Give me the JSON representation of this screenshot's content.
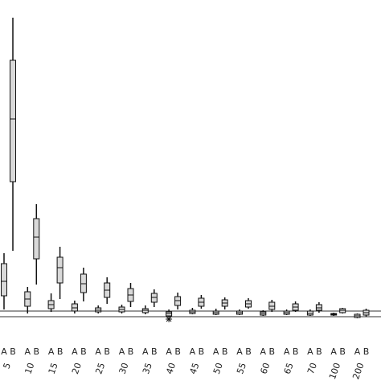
{
  "chart_data": {
    "type": "box",
    "categories": [
      "5",
      "10",
      "15",
      "20",
      "25",
      "30",
      "35",
      "40",
      "45",
      "50",
      "55",
      "60",
      "65",
      "70",
      "100",
      "200"
    ],
    "ylim": [
      -20,
      374
    ],
    "reference_lines": [
      7,
      0
    ],
    "box_color": "#d9d9d9",
    "series": [
      {
        "name": "A",
        "values": [
          {
            "low": 9,
            "q1": 26,
            "median": 44,
            "q3": 66,
            "high": 79
          },
          {
            "low": 4,
            "q1": 13,
            "median": 22,
            "q3": 31,
            "high": 37
          },
          {
            "low": 6,
            "q1": 10,
            "median": 15,
            "q3": 20,
            "high": 29
          },
          {
            "low": 4,
            "q1": 7,
            "median": 11,
            "q3": 16,
            "high": 20
          },
          {
            "low": 4,
            "q1": 6,
            "median": 8,
            "q3": 11,
            "high": 14
          },
          {
            "low": 4,
            "q1": 6,
            "median": 9,
            "q3": 12,
            "high": 15
          },
          {
            "low": 3,
            "q1": 5,
            "median": 8,
            "q3": 10,
            "high": 14
          },
          {
            "low": 0,
            "q1": 1,
            "median": 4,
            "q3": 6,
            "high": 9
          },
          {
            "low": 3,
            "q1": 4,
            "median": 6,
            "q3": 8,
            "high": 11
          },
          {
            "low": 2,
            "q1": 3,
            "median": 5,
            "q3": 7,
            "high": 10
          },
          {
            "low": 2,
            "q1": 3,
            "median": 5,
            "q3": 7,
            "high": 9
          },
          {
            "low": 1,
            "q1": 2,
            "median": 4,
            "q3": 6,
            "high": 8
          },
          {
            "low": 2,
            "q1": 3,
            "median": 5,
            "q3": 7,
            "high": 9
          },
          {
            "low": 1,
            "q1": 2,
            "median": 4,
            "q3": 7,
            "high": 9
          },
          {
            "low": 1,
            "q1": 2,
            "median": 3,
            "q3": 4,
            "high": 5
          },
          {
            "low": -2,
            "q1": -1,
            "median": 1,
            "q3": 3,
            "high": 4
          }
        ],
        "outliers": [
          [],
          [],
          [],
          [],
          [],
          [],
          [],
          [
            -3
          ],
          [],
          [],
          [],
          [],
          [],
          [],
          [],
          []
        ]
      },
      {
        "name": "B",
        "values": [
          {
            "low": 82,
            "q1": 168,
            "median": 246,
            "q3": 319,
            "high": 372
          },
          {
            "low": 40,
            "q1": 72,
            "median": 99,
            "q3": 122,
            "high": 140
          },
          {
            "low": 22,
            "q1": 42,
            "median": 61,
            "q3": 74,
            "high": 87
          },
          {
            "low": 19,
            "q1": 30,
            "median": 41,
            "q3": 53,
            "high": 61
          },
          {
            "low": 16,
            "q1": 24,
            "median": 33,
            "q3": 42,
            "high": 49
          },
          {
            "low": 12,
            "q1": 19,
            "median": 27,
            "q3": 35,
            "high": 42
          },
          {
            "low": 12,
            "q1": 18,
            "median": 24,
            "q3": 29,
            "high": 34
          },
          {
            "low": 9,
            "q1": 14,
            "median": 20,
            "q3": 25,
            "high": 30
          },
          {
            "low": 10,
            "q1": 13,
            "median": 18,
            "q3": 23,
            "high": 27
          },
          {
            "low": 9,
            "q1": 13,
            "median": 17,
            "q3": 21,
            "high": 24
          },
          {
            "low": 10,
            "q1": 12,
            "median": 16,
            "q3": 20,
            "high": 23
          },
          {
            "low": 6,
            "q1": 9,
            "median": 13,
            "q3": 18,
            "high": 21
          },
          {
            "low": 6,
            "q1": 8,
            "median": 12,
            "q3": 16,
            "high": 19
          },
          {
            "low": 5,
            "q1": 8,
            "median": 11,
            "q3": 15,
            "high": 18
          },
          {
            "low": 4,
            "q1": 5,
            "median": 8,
            "q3": 10,
            "high": 11
          },
          {
            "low": 0,
            "q1": 2,
            "median": 5,
            "q3": 8,
            "high": 10
          }
        ],
        "outliers": [
          [],
          [],
          [],
          [],
          [],
          [],
          [],
          [],
          [],
          [],
          [],
          [],
          [],
          [],
          [],
          []
        ]
      }
    ]
  }
}
